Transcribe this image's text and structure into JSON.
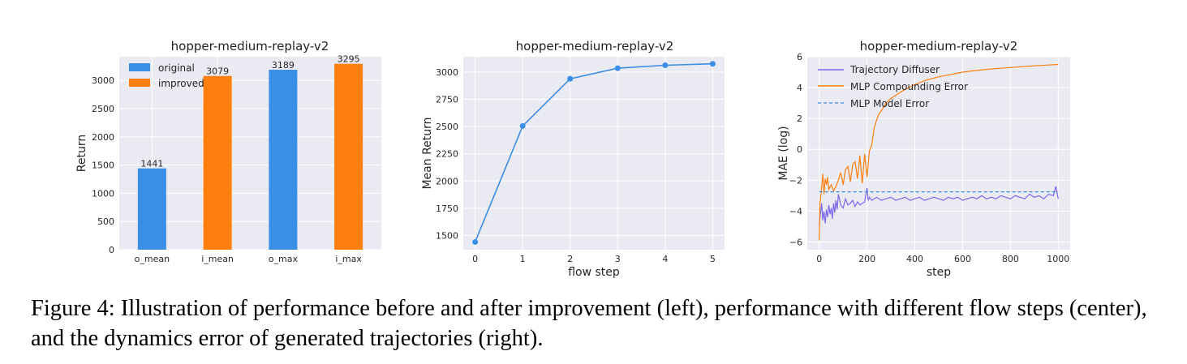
{
  "caption": "Figure 4: Illustration of performance before and after improvement (left), performance with different flow steps (center), and the dynamics error of generated trajectories (right).",
  "colors": {
    "blue": "#3a8ee6",
    "orange": "#ff7f0e",
    "purple": "#7b68ee",
    "panel_bg": "#eaeaf2",
    "grid": "#ffffff"
  },
  "chart_data": [
    {
      "type": "bar",
      "title": "hopper-medium-replay-v2",
      "xlabel": "",
      "ylabel": "Return",
      "categories": [
        "o_mean",
        "i_mean",
        "o_max",
        "i_max"
      ],
      "values": [
        1441,
        3079,
        3189,
        3295
      ],
      "data_labels": [
        "1441",
        "3079",
        "3189",
        "3295"
      ],
      "bar_series": [
        "original",
        "improved",
        "original",
        "improved"
      ],
      "legend": [
        "original",
        "improved"
      ],
      "legend_loc": "upper-left",
      "ylim": [
        0,
        3420
      ],
      "yticks": [
        0,
        500,
        1000,
        1500,
        2000,
        2500,
        3000
      ],
      "grid": true
    },
    {
      "type": "line",
      "title": "hopper-medium-replay-v2",
      "xlabel": "flow step",
      "ylabel": "Mean Return",
      "x": [
        0,
        1,
        2,
        3,
        4,
        5
      ],
      "y": [
        1441,
        2505,
        2938,
        3035,
        3062,
        3075
      ],
      "xlim": [
        -0.25,
        5.25
      ],
      "ylim": [
        1370,
        3140
      ],
      "xticks": [
        0,
        1,
        2,
        3,
        4,
        5
      ],
      "yticks": [
        1500,
        1750,
        2000,
        2250,
        2500,
        2750,
        3000
      ],
      "grid": true
    },
    {
      "type": "line",
      "title": "hopper-medium-replay-v2",
      "xlabel": "step",
      "ylabel": "MAE (log)",
      "xlim": [
        -50,
        1050
      ],
      "ylim": [
        -6.5,
        6.0
      ],
      "xticks": [
        0,
        200,
        400,
        600,
        800,
        1000
      ],
      "yticks": [
        -6,
        -4,
        -2,
        0,
        2,
        4,
        6
      ],
      "legend_loc": "upper-left",
      "grid": true,
      "series": [
        {
          "name": "Trajectory Diffuser",
          "style": "solid",
          "x": [
            0,
            5,
            10,
            15,
            20,
            25,
            30,
            35,
            40,
            45,
            50,
            55,
            60,
            65,
            70,
            75,
            80,
            90,
            100,
            110,
            120,
            130,
            140,
            150,
            160,
            170,
            180,
            190,
            200,
            205,
            210,
            220,
            240,
            260,
            280,
            300,
            320,
            340,
            360,
            380,
            400,
            420,
            440,
            460,
            480,
            500,
            520,
            540,
            560,
            580,
            600,
            620,
            640,
            660,
            680,
            700,
            720,
            740,
            760,
            780,
            800,
            820,
            840,
            860,
            880,
            900,
            920,
            940,
            960,
            980,
            990,
            1000
          ],
          "y": [
            -4.9,
            -4.2,
            -3.5,
            -4.6,
            -4.0,
            -4.8,
            -3.9,
            -4.4,
            -3.6,
            -4.2,
            -3.8,
            -4.5,
            -3.5,
            -4.1,
            -3.3,
            -3.9,
            -2.9,
            -3.6,
            -3.8,
            -3.2,
            -3.6,
            -3.5,
            -3.3,
            -3.7,
            -3.4,
            -3.6,
            -3.5,
            -3.4,
            -2.5,
            -3.3,
            -3.1,
            -3.3,
            -3.1,
            -3.3,
            -3.2,
            -3.1,
            -3.3,
            -3.2,
            -3.1,
            -3.3,
            -3.2,
            -3.1,
            -3.3,
            -3.2,
            -3.1,
            -3.2,
            -3.3,
            -3.1,
            -3.2,
            -3.1,
            -3.3,
            -3.2,
            -3.1,
            -3.2,
            -3.0,
            -3.2,
            -3.1,
            -3.2,
            -3.0,
            -3.1,
            -3.2,
            -3.0,
            -3.1,
            -3.2,
            -2.9,
            -3.1,
            -3.0,
            -3.2,
            -2.9,
            -3.0,
            -2.4,
            -3.2
          ]
        },
        {
          "name": "MLP Compounding Error",
          "style": "solid",
          "x": [
            0,
            3,
            8,
            15,
            20,
            25,
            30,
            35,
            40,
            50,
            60,
            70,
            80,
            90,
            100,
            110,
            120,
            130,
            140,
            150,
            160,
            170,
            180,
            190,
            200,
            210,
            220,
            230,
            240,
            250,
            260,
            280,
            300,
            350,
            400,
            450,
            500,
            550,
            600,
            650,
            700,
            750,
            800,
            850,
            900,
            950,
            1000
          ],
          "y": [
            -5.9,
            -3.5,
            -2.8,
            -1.6,
            -2.9,
            -1.9,
            -2.3,
            -1.8,
            -2.6,
            -2.3,
            -2.7,
            -2.4,
            -2.0,
            -1.5,
            -2.3,
            -1.3,
            -1.1,
            -2.1,
            -1.0,
            -0.8,
            -1.9,
            -0.4,
            -2.2,
            -0.3,
            -1.8,
            -0.1,
            0.3,
            1.4,
            1.9,
            2.3,
            2.5,
            3.0,
            3.3,
            3.8,
            4.2,
            4.5,
            4.7,
            4.85,
            5.0,
            5.1,
            5.18,
            5.25,
            5.3,
            5.36,
            5.41,
            5.46,
            5.5
          ]
        },
        {
          "name": "MLP Model Error",
          "style": "dashed",
          "x": [
            0,
            1000
          ],
          "y": [
            -2.75,
            -2.75
          ]
        }
      ]
    }
  ]
}
